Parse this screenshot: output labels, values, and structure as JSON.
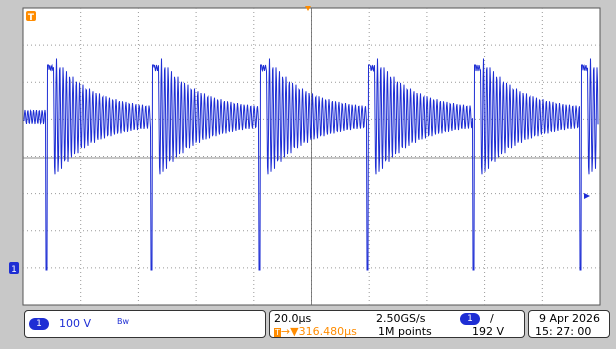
{
  "channel": {
    "number": "1",
    "volts_per_div": "100 V",
    "bw_symbol": "Bw",
    "color": "#1e2ed4"
  },
  "timebase": {
    "time_per_div": "20.0μs",
    "trigger_position": "316.480μs",
    "sample_rate": "2.50GS/s",
    "record_length": "1M points"
  },
  "trigger": {
    "channel": "1",
    "slope_symbol": "/",
    "level": "192 V",
    "marker_label": "T"
  },
  "datetime": {
    "date": "9 Apr  2026",
    "time": "15: 27: 00"
  },
  "colors": {
    "screen_bg": "#ffffff",
    "frame_bg": "#c8c8c8",
    "grid": "#888888",
    "trace": "#1e2ed4",
    "trigger": "#ff8c00"
  },
  "waveform": {
    "description_type": "repeating pulse with damped ringing",
    "pulse_count": 5,
    "period_divisions": 2.1
  }
}
